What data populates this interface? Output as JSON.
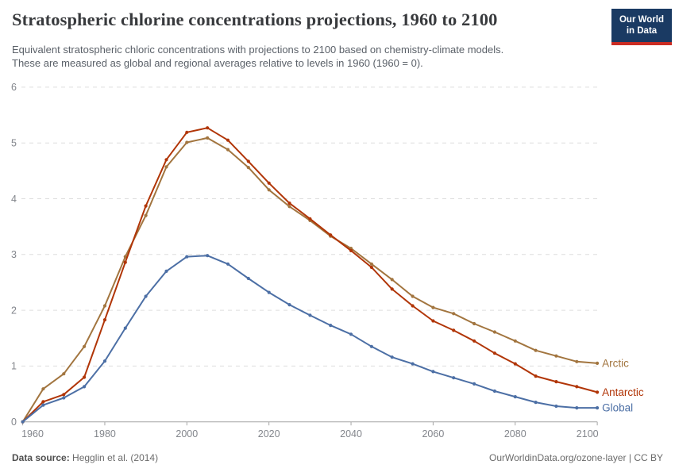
{
  "header": {
    "title": "Stratospheric chlorine concentrations projections, 1960 to 2100",
    "subtitle_lines": [
      "Equivalent stratospheric chloric concentrations with projections to 2100 based on chemistry-climate models.",
      "These are measured as global and regional averages relative to levels in 1960 (1960 = 0)."
    ],
    "logo": {
      "line1": "Our World",
      "line2": "in Data",
      "bg_color": "#1a3a63",
      "stripe_color": "#cb2c23"
    }
  },
  "chart_data": {
    "type": "line",
    "title": "Stratospheric chlorine concentrations projections, 1960 to 2100",
    "x": [
      1960,
      1965,
      1970,
      1975,
      1980,
      1985,
      1990,
      1995,
      2000,
      2005,
      2010,
      2015,
      2020,
      2025,
      2030,
      2035,
      2040,
      2045,
      2050,
      2055,
      2060,
      2065,
      2070,
      2075,
      2080,
      2085,
      2090,
      2095,
      2100
    ],
    "series": [
      {
        "name": "Arctic",
        "color": "#A2753F",
        "values": [
          0,
          0.59,
          0.86,
          1.35,
          2.08,
          2.96,
          3.7,
          4.57,
          5.01,
          5.09,
          4.88,
          4.56,
          4.16,
          3.86,
          3.61,
          3.33,
          3.11,
          2.83,
          2.55,
          2.25,
          2.05,
          1.94,
          1.76,
          1.61,
          1.45,
          1.28,
          1.18,
          1.08,
          1.05
        ]
      },
      {
        "name": "Antarctic",
        "color": "#B13507",
        "values": [
          0,
          0.36,
          0.49,
          0.8,
          1.83,
          2.86,
          3.87,
          4.7,
          5.19,
          5.27,
          5.05,
          4.67,
          4.28,
          3.92,
          3.64,
          3.35,
          3.07,
          2.77,
          2.38,
          2.08,
          1.81,
          1.64,
          1.45,
          1.23,
          1.04,
          0.82,
          0.72,
          0.63,
          0.53
        ]
      },
      {
        "name": "Global",
        "color": "#4C6FA5",
        "values": [
          0,
          0.3,
          0.43,
          0.63,
          1.09,
          1.68,
          2.25,
          2.7,
          2.96,
          2.98,
          2.83,
          2.57,
          2.32,
          2.1,
          1.91,
          1.73,
          1.57,
          1.35,
          1.16,
          1.04,
          0.9,
          0.79,
          0.68,
          0.55,
          0.45,
          0.35,
          0.28,
          0.25,
          0.25
        ]
      }
    ],
    "xlabel": "",
    "ylabel": "",
    "xlim": [
      1960,
      2100
    ],
    "ylim": [
      0,
      6
    ],
    "xticks": [
      1960,
      1980,
      2000,
      2020,
      2040,
      2060,
      2080,
      2100
    ],
    "yticks": [
      0,
      1,
      2,
      3,
      4,
      5,
      6
    ],
    "grid": "horizontal-dashed",
    "legend_position": "right-line-end-labels"
  },
  "footer": {
    "source_label": "Data source:",
    "source_value": " Hegglin et al. (2014)",
    "credit": "OurWorldinData.org/ozone-layer | CC BY"
  }
}
